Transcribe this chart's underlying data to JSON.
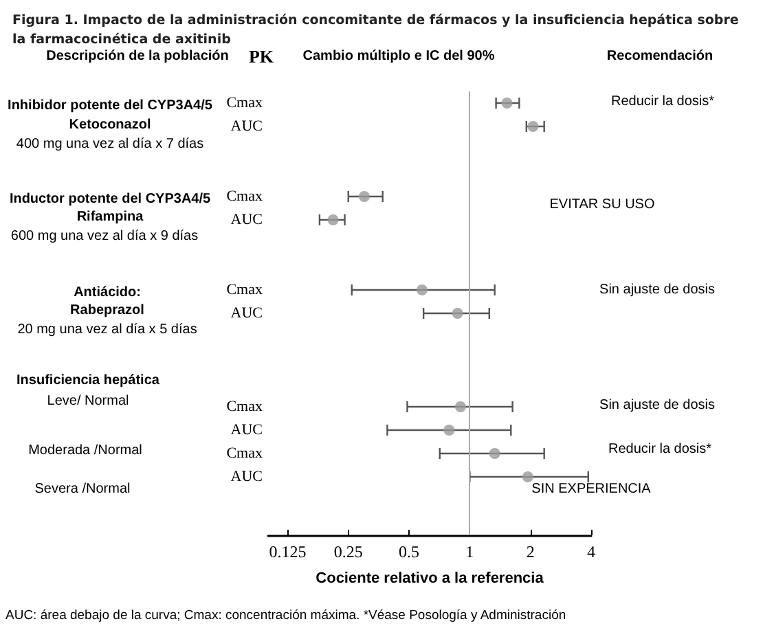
{
  "chart_data": {
    "type": "scatter",
    "orientation": "horizontal",
    "title": "Figura 1. Impacto de la administración concomitante de fármacos y la insuficiencia hepática sobre la farmacocinética de axitinib",
    "xlabel": "Cociente relativo a la referencia",
    "categories": [
      "Cmax",
      "AUC",
      null,
      null,
      "Cmax",
      "AUC",
      null,
      null,
      "Cmax",
      "AUC",
      null,
      null,
      null,
      "Cmax",
      "AUC",
      "Cmax",
      "AUC",
      null,
      null
    ],
    "values": [
      1.53,
      2.06,
      null,
      null,
      0.3,
      0.21,
      null,
      null,
      0.58,
      0.87,
      null,
      null,
      null,
      0.9,
      0.79,
      1.33,
      1.94,
      null,
      null
    ],
    "errors": [
      [
        1.35,
        1.76
      ],
      [
        1.91,
        2.34
      ],
      null,
      null,
      [
        0.25,
        0.37
      ],
      [
        0.18,
        0.24
      ],
      null,
      null,
      [
        0.26,
        1.33
      ],
      [
        0.59,
        1.25
      ],
      null,
      null,
      null,
      [
        0.49,
        1.63
      ],
      [
        0.39,
        1.6
      ],
      [
        0.71,
        2.34
      ],
      [
        1,
        3.87
      ],
      null,
      null
    ],
    "color": "#999999",
    "marker": "circle",
    "log": "x",
    "xlim": [
      0.1,
      4
    ],
    "xticks": [
      0.125,
      0.25,
      0.5,
      1,
      2,
      4
    ],
    "ref_lines": [
      {
        "axis": "x",
        "value": 1,
        "color": "#aaaaaa"
      }
    ],
    "annotations": [
      "Descripción de la población",
      "PK",
      "Cambio múltiplo e IC del 90%",
      "Recomendación",
      "Inhibidor potente del CYP3A4/5",
      "Ketoconazol",
      "400 mg una vez al día x 7 días",
      "Reducir la dosis*",
      "Inductor potente del CYP3A4/5",
      "Rifampina",
      "600 mg una vez al día x 9 días",
      "EVITAR SU USO",
      "Antiácido:",
      "Rabeprazol",
      "20 mg una vez al día x 5 días",
      "Sin ajuste de dosis",
      "Insuficiencia hepática",
      "Leve/ Normal",
      "Sin ajuste de dosis",
      "Moderada /Normal",
      "Reducir la dosis*",
      "Severa /Normal",
      "SIN EXPERIENCIA",
      "AUC: área debajo de la curva; Cmax: concentración máxima. *Véase Posología y Administración"
    ]
  }
}
